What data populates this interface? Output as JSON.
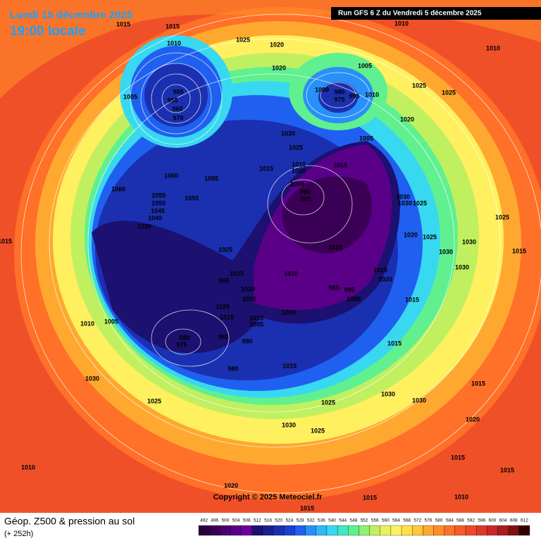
{
  "header": {
    "date": "Lundi 15 décembre 2025",
    "time": "19:00 locale",
    "run": "Run GFS 6 Z du Vendredi 5 décembre 2025"
  },
  "copyright": "Copyright © 2025 Meteociel.fr",
  "footer": {
    "title": "Géop. Z500 & pression au sol",
    "lead": "(+ 252h)"
  },
  "scale": {
    "levels": [
      492,
      496,
      500,
      504,
      508,
      512,
      516,
      520,
      524,
      528,
      532,
      536,
      540,
      544,
      548,
      552,
      556,
      560,
      564,
      568,
      572,
      576,
      580,
      584,
      588,
      592,
      596,
      600,
      604,
      608,
      612
    ],
    "colors": [
      "#2a0038",
      "#3a0055",
      "#4a0070",
      "#5a0088",
      "#6a00a0",
      "#1c1070",
      "#1a2090",
      "#1a30b0",
      "#1a40d0",
      "#2060f0",
      "#2890f8",
      "#30b8f8",
      "#38d8f0",
      "#40e8c0",
      "#60f090",
      "#90f070",
      "#c0f060",
      "#e8f060",
      "#fff060",
      "#ffe048",
      "#ffc838",
      "#ffa830",
      "#ff8c28",
      "#ff7028",
      "#f85a28",
      "#f04828",
      "#e03828",
      "#c82828",
      "#a81c1c",
      "#801010",
      "#300000"
    ]
  },
  "isobar_labels": [
    1015,
    1015,
    1025,
    1020,
    1010,
    1010,
    1010,
    1020,
    1005,
    985,
    955,
    960,
    970,
    1005,
    1000,
    980,
    995,
    975,
    1010,
    1025,
    1025,
    1020,
    1030,
    1005,
    1025,
    1015,
    1010,
    1005,
    1015,
    1060,
    1055,
    1060,
    1000,
    990,
    985,
    1055,
    1055,
    1050,
    1045,
    1040,
    1030,
    1030,
    1030,
    1025,
    1025,
    1020,
    1025,
    1030,
    1015,
    1025,
    1015,
    1015,
    1030,
    1030,
    1025,
    1010,
    1015,
    995,
    1020,
    985,
    995,
    1020,
    1020,
    1000,
    1015,
    1020,
    1000,
    1015,
    1010,
    1005,
    1010,
    1005,
    980,
    975,
    980,
    980,
    1015,
    1015,
    980,
    1030,
    1025,
    1030,
    1030,
    1015,
    1020,
    1025,
    1030,
    1025,
    1010,
    1015,
    1020,
    1015,
    1015,
    1010,
    1015
  ]
}
